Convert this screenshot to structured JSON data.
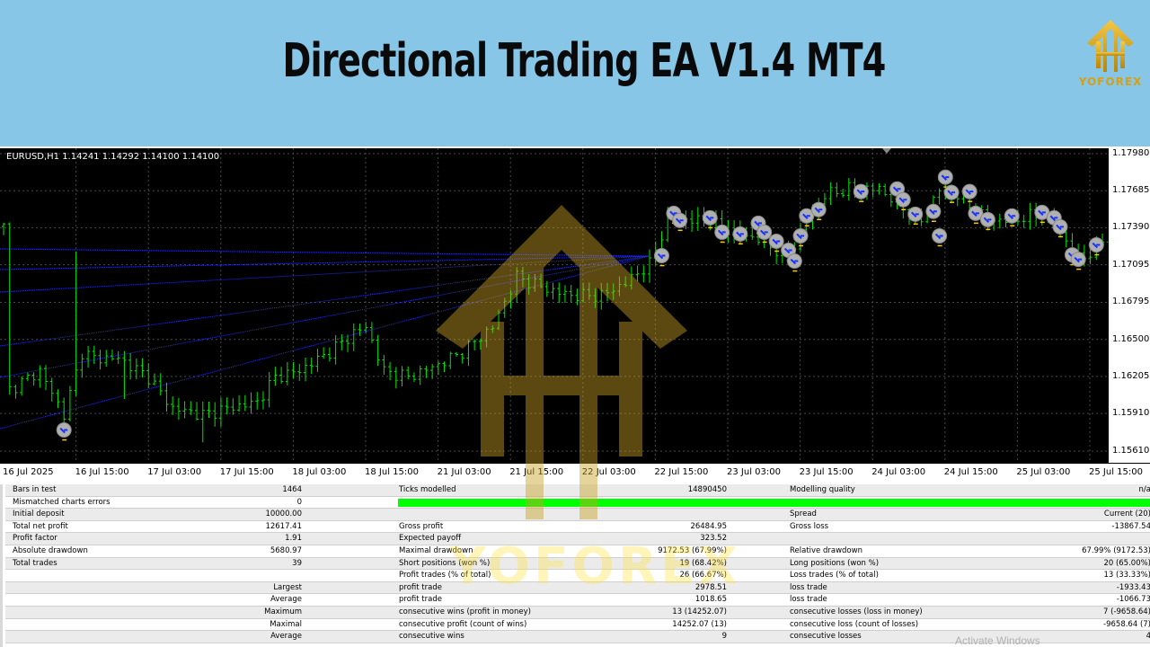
{
  "banner": {
    "title": "Directional Trading EA V1.4 MT4",
    "logo_text": "YOFOREX",
    "background": "#87c6e6"
  },
  "chart": {
    "symbol_info": "EURUSD,H1  1.14241 1.14292 1.14100 1.14100",
    "price_ticks": [
      "1.17980",
      "1.17685",
      "1.17390",
      "1.17095",
      "1.16795",
      "1.16500",
      "1.16205",
      "1.15910",
      "1.15610"
    ],
    "time_ticks": [
      "16 Jul 2025",
      "16 Jul 15:00",
      "17 Jul 03:00",
      "17 Jul 15:00",
      "18 Jul 03:00",
      "18 Jul 15:00",
      "21 Jul 03:00",
      "21 Jul 15:00",
      "22 Jul 03:00",
      "22 Jul 15:00",
      "23 Jul 03:00",
      "23 Jul 15:00",
      "24 Jul 03:00",
      "24 Jul 15:00",
      "25 Jul 03:00",
      "25 Jul 15:00"
    ],
    "bar_color": "#00e600",
    "close_samples": [
      [
        1,
        1.161
      ],
      [
        6,
        1.1625
      ],
      [
        10,
        1.159
      ],
      [
        13,
        1.164
      ],
      [
        15,
        1.1635
      ],
      [
        19,
        1.1635
      ],
      [
        24,
        1.162
      ],
      [
        28,
        1.1595
      ],
      [
        33,
        1.159
      ],
      [
        37,
        1.1595
      ],
      [
        42,
        1.16
      ],
      [
        45,
        1.162
      ],
      [
        49,
        1.1625
      ],
      [
        54,
        1.164
      ],
      [
        58,
        1.1655
      ],
      [
        60,
        1.166
      ],
      [
        63,
        1.1625
      ],
      [
        67,
        1.162
      ],
      [
        72,
        1.163
      ],
      [
        76,
        1.164
      ],
      [
        81,
        1.166
      ],
      [
        85,
        1.17
      ],
      [
        90,
        1.169
      ],
      [
        94,
        1.1685
      ],
      [
        99,
        1.1685
      ],
      [
        103,
        1.1695
      ],
      [
        107,
        1.171
      ],
      [
        110,
        1.1745
      ],
      [
        116,
        1.1745
      ],
      [
        121,
        1.1735
      ],
      [
        125,
        1.173
      ],
      [
        130,
        1.1715
      ],
      [
        133,
        1.1745
      ],
      [
        136,
        1.1765
      ],
      [
        140,
        1.177
      ],
      [
        145,
        1.177
      ],
      [
        149,
        1.1755
      ],
      [
        152,
        1.1745
      ],
      [
        155,
        1.177
      ],
      [
        158,
        1.1765
      ],
      [
        163,
        1.1745
      ],
      [
        167,
        1.1745
      ],
      [
        172,
        1.175
      ],
      [
        175,
        1.1735
      ],
      [
        178,
        1.1715
      ],
      [
        181,
        1.172
      ],
      [
        183,
        1.174
      ]
    ],
    "spike_high": [
      12,
      1.172
    ],
    "trade_markers": [
      [
        10,
        1.15778
      ],
      [
        109,
        1.17167
      ],
      [
        111,
        1.17505
      ],
      [
        112,
        1.17448
      ],
      [
        117,
        1.17469
      ],
      [
        119,
        1.17354
      ],
      [
        122,
        1.1734
      ],
      [
        125,
        1.17426
      ],
      [
        126,
        1.17354
      ],
      [
        128,
        1.17282
      ],
      [
        130,
        1.1721
      ],
      [
        131,
        1.17124
      ],
      [
        132,
        1.17325
      ],
      [
        133,
        1.17484
      ],
      [
        135,
        1.17534
      ],
      [
        142,
        1.17678
      ],
      [
        148,
        1.17699
      ],
      [
        149,
        1.17613
      ],
      [
        151,
        1.17498
      ],
      [
        154,
        1.1752
      ],
      [
        155,
        1.17325
      ],
      [
        156,
        1.17793
      ],
      [
        157,
        1.17671
      ],
      [
        160,
        1.17678
      ],
      [
        161,
        1.17505
      ],
      [
        163,
        1.17455
      ],
      [
        167,
        1.17484
      ],
      [
        172,
        1.17512
      ],
      [
        174,
        1.17469
      ],
      [
        175,
        1.17397
      ],
      [
        177,
        1.17174
      ],
      [
        178,
        1.17138
      ],
      [
        181,
        1.17253
      ]
    ]
  },
  "report": {
    "rows": [
      [
        "Bars in test",
        "1464",
        "Ticks modelled",
        "14890450",
        "Modelling quality",
        "n/a"
      ],
      [
        "Mismatched charts errors",
        "0",
        "",
        "",
        "",
        ""
      ],
      [
        "Initial deposit",
        "10000.00",
        "",
        "",
        "Spread",
        "Current (20)"
      ],
      [
        "Total net profit",
        "12617.41",
        "Gross profit",
        "26484.95",
        "Gross loss",
        "-13867.54"
      ],
      [
        "Profit factor",
        "1.91",
        "Expected payoff",
        "323.52",
        "",
        ""
      ],
      [
        "Absolute drawdown",
        "5680.97",
        "Maximal drawdown",
        "9172.53 (67.99%)",
        "Relative drawdown",
        "67.99% (9172.53)"
      ],
      [
        "Total trades",
        "39",
        "Short positions (won %)",
        "19 (68.42%)",
        "Long positions (won %)",
        "20 (65.00%)"
      ],
      [
        "",
        "",
        "Profit trades (% of total)",
        "26 (66.67%)",
        "Loss trades (% of total)",
        "13 (33.33%)"
      ],
      [
        "",
        "Largest",
        "profit trade",
        "2978.51",
        "loss trade",
        "-1933.43"
      ],
      [
        "",
        "Average",
        "profit trade",
        "1018.65",
        "loss trade",
        "-1066.73"
      ],
      [
        "",
        "Maximum",
        "consecutive wins (profit in money)",
        "13 (14252.07)",
        "consecutive losses (loss in money)",
        "7 (-9658.64)"
      ],
      [
        "",
        "Maximal",
        "consecutive profit (count of wins)",
        "14252.07 (13)",
        "consecutive loss (count of losses)",
        "-9658.64 (7)"
      ],
      [
        "",
        "Average",
        "consecutive wins",
        "9",
        "consecutive losses",
        "4"
      ]
    ],
    "quality_bar_color": "#00ff00"
  },
  "watermark": {
    "text": "YOFOREX"
  },
  "os_notice": "Activate Windows"
}
